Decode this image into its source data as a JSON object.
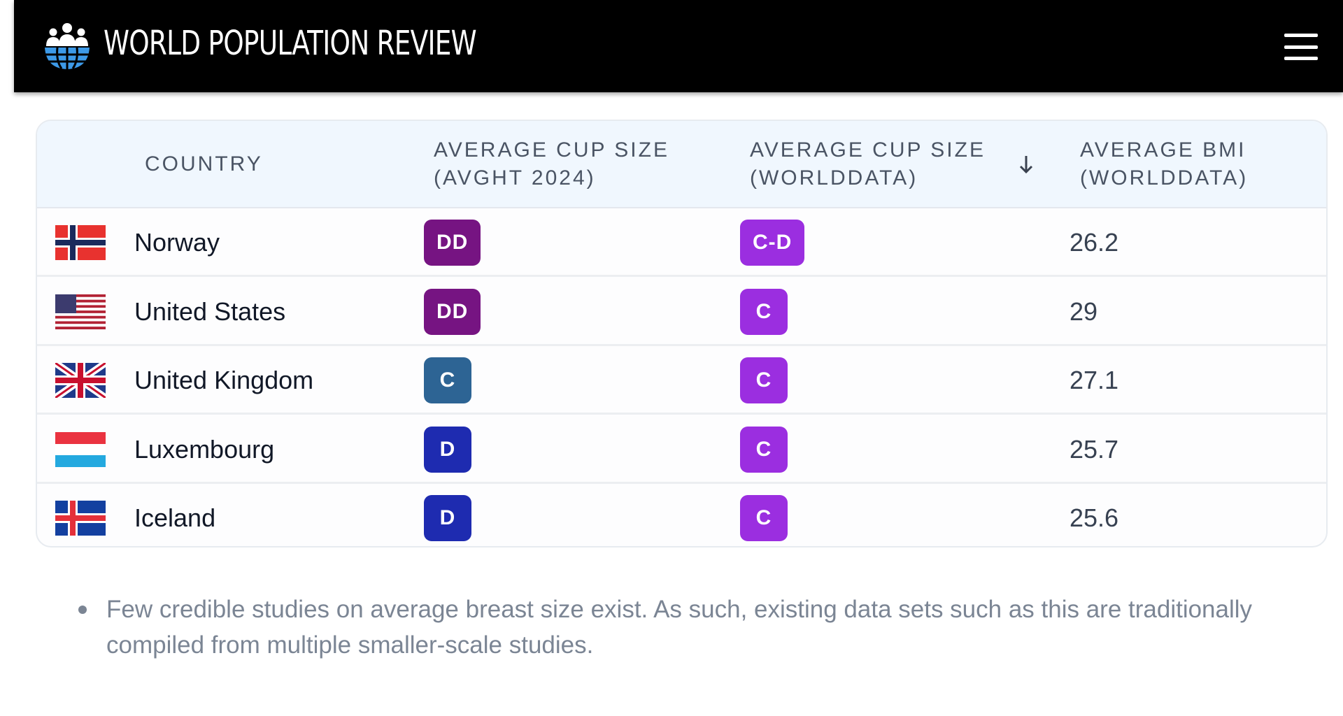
{
  "header": {
    "brand": "WORLD POPULATION REVIEW",
    "logo_icon": "people-globe-icon",
    "menu_icon": "hamburger-menu-icon"
  },
  "table": {
    "columns": [
      "COUNTRY",
      "AVERAGE CUP SIZE (AVGHT 2024)",
      "AVERAGE CUP SIZE (WORLDDATA)",
      "AVERAGE BMI (WORLDDATA)"
    ],
    "column_lines": {
      "c1a": "AVERAGE CUP SIZE",
      "c1b": "(AVGHT 2024)",
      "c2a": "AVERAGE CUP SIZE",
      "c2b": "(WORLDDATA)",
      "c3a": "AVERAGE BMI",
      "c3b": "(WORLDDATA)"
    },
    "sort_icon": "arrow-down-icon",
    "rows": [
      {
        "country": "Norway",
        "avght": "DD",
        "avght_color": "#761482",
        "worlddata": "C-D",
        "worlddata_color": "#9b2ee0",
        "bmi": "26.2"
      },
      {
        "country": "United States",
        "avght": "DD",
        "avght_color": "#761482",
        "worlddata": "C",
        "worlddata_color": "#9b2ee0",
        "bmi": "29"
      },
      {
        "country": "United Kingdom",
        "avght": "C",
        "avght_color": "#2d6494",
        "worlddata": "C",
        "worlddata_color": "#9b2ee0",
        "bmi": "27.1"
      },
      {
        "country": "Luxembourg",
        "avght": "D",
        "avght_color": "#1e2bb0",
        "worlddata": "C",
        "worlddata_color": "#9b2ee0",
        "bmi": "25.7"
      },
      {
        "country": "Iceland",
        "avght": "D",
        "avght_color": "#1e2bb0",
        "worlddata": "C",
        "worlddata_color": "#9b2ee0",
        "bmi": "25.6"
      }
    ]
  },
  "notes": [
    "Few credible studies on average breast size exist. As such, existing data sets such as this are traditionally compiled from multiple smaller-scale studies."
  ]
}
